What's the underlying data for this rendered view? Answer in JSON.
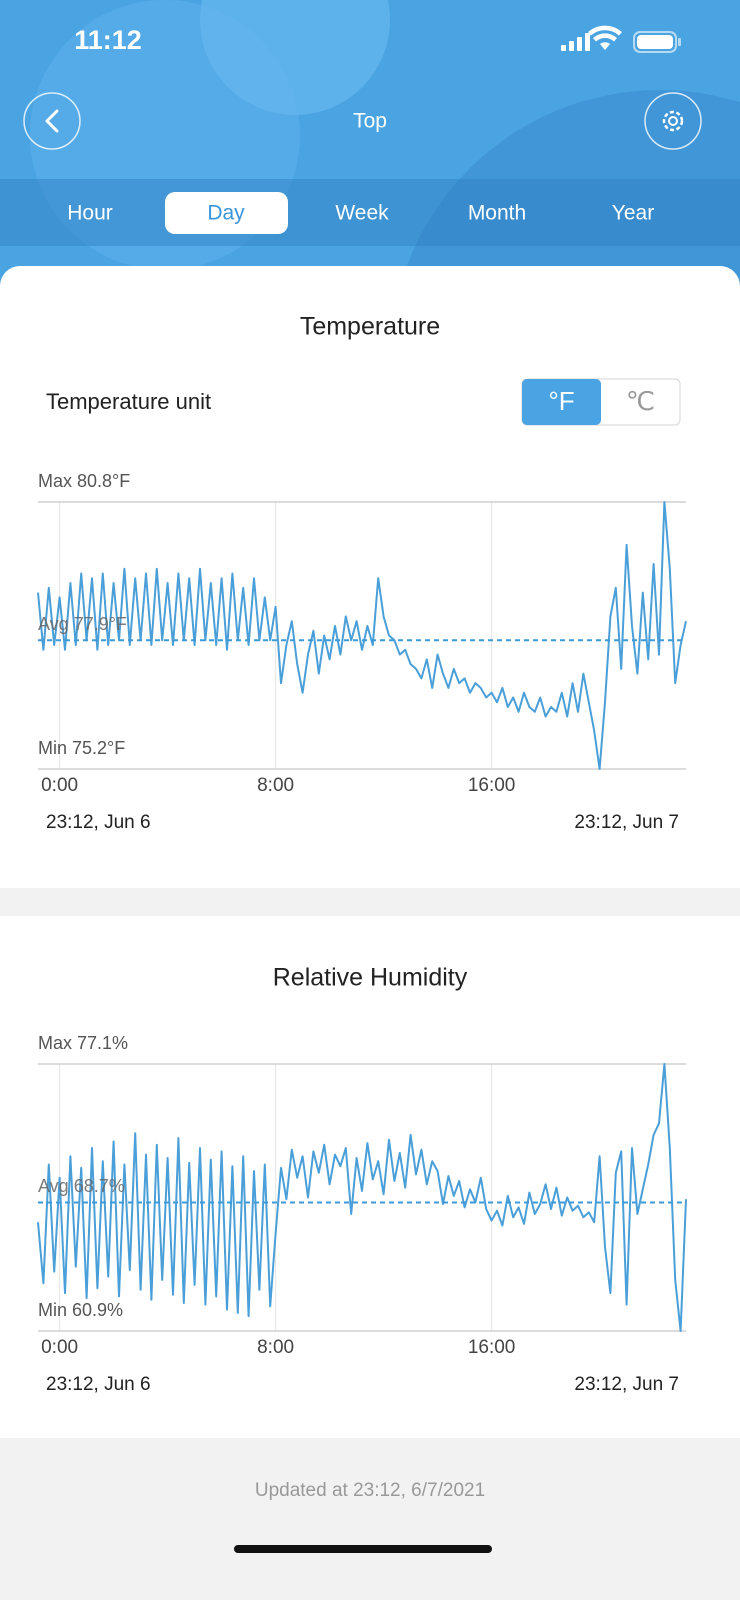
{
  "status_bar": {
    "time": "11:12"
  },
  "header": {
    "title": "Top"
  },
  "tabs": {
    "items": [
      "Hour",
      "Day",
      "Week",
      "Month",
      "Year"
    ],
    "selected": 1
  },
  "temperature_unit": {
    "label": "Temperature unit",
    "options": [
      "°F",
      "℃"
    ],
    "selected": 0
  },
  "chart_data": [
    {
      "type": "line",
      "title": "Temperature",
      "color": "#4a9fd8",
      "grid": true,
      "x": [
        -0.8,
        -0.6,
        -0.4,
        -0.2,
        0,
        0.2,
        0.4,
        0.6,
        0.8,
        1,
        1.2,
        1.4,
        1.6,
        1.8,
        2,
        2.2,
        2.4,
        2.6,
        2.8,
        3,
        3.2,
        3.4,
        3.6,
        3.8,
        4,
        4.2,
        4.4,
        4.6,
        4.8,
        5,
        5.2,
        5.4,
        5.6,
        5.8,
        6,
        6.2,
        6.4,
        6.6,
        6.8,
        7,
        7.2,
        7.4,
        7.6,
        7.8,
        8,
        8.2,
        8.4,
        8.6,
        8.8,
        9,
        9.2,
        9.4,
        9.6,
        9.8,
        10,
        10.2,
        10.4,
        10.6,
        10.8,
        11,
        11.2,
        11.4,
        11.6,
        11.8,
        12,
        12.2,
        12.4,
        12.6,
        12.8,
        13,
        13.2,
        13.4,
        13.6,
        13.8,
        14,
        14.2,
        14.4,
        14.6,
        14.8,
        15,
        15.2,
        15.4,
        15.6,
        15.8,
        16,
        16.2,
        16.4,
        16.6,
        16.8,
        17,
        17.2,
        17.4,
        17.6,
        17.8,
        18,
        18.2,
        18.4,
        18.6,
        18.8,
        19,
        19.2,
        19.4,
        19.6,
        19.8,
        20,
        20.2,
        20.4,
        20.6,
        20.8,
        21,
        21.2,
        21.4,
        21.6,
        21.8,
        22,
        22.2,
        22.4,
        22.6,
        22.8,
        23,
        23.2
      ],
      "series": [
        {
          "color": "#4a9fd8",
          "values": [
            78.9,
            77.7,
            79.0,
            77.8,
            78.8,
            77.7,
            79.1,
            77.8,
            79.3,
            77.9,
            79.2,
            77.7,
            79.3,
            77.8,
            79.1,
            77.9,
            79.4,
            77.8,
            79.2,
            77.9,
            79.3,
            77.8,
            79.4,
            77.9,
            79.1,
            77.8,
            79.3,
            77.9,
            79.2,
            77.8,
            79.4,
            77.9,
            79.1,
            77.8,
            79.2,
            77.7,
            79.3,
            77.9,
            79.0,
            77.8,
            79.2,
            77.9,
            78.8,
            77.9,
            78.6,
            77.0,
            77.8,
            78.3,
            77.4,
            76.8,
            77.6,
            78.1,
            77.2,
            78.0,
            77.5,
            78.2,
            77.6,
            78.4,
            77.9,
            78.3,
            77.7,
            78.2,
            77.8,
            79.2,
            78.4,
            78.0,
            77.9,
            77.6,
            77.7,
            77.4,
            77.3,
            77.1,
            77.5,
            76.9,
            77.6,
            77.2,
            76.9,
            77.3,
            77.0,
            77.1,
            76.8,
            77.0,
            76.9,
            76.7,
            76.8,
            76.6,
            76.9,
            76.5,
            76.7,
            76.4,
            76.8,
            76.5,
            76.4,
            76.7,
            76.3,
            76.5,
            76.4,
            76.8,
            76.3,
            77.0,
            76.4,
            77.2,
            76.6,
            76.0,
            75.2,
            76.6,
            78.4,
            79.0,
            77.3,
            79.9,
            78.2,
            77.2,
            78.9,
            77.5,
            79.5,
            77.6,
            80.8,
            79.4,
            77.0,
            77.8,
            78.3
          ]
        }
      ],
      "xlim": [
        -0.8,
        23.2
      ],
      "xticks": [
        {
          "value": 0,
          "label": "0:00"
        },
        {
          "value": 8,
          "label": "8:00"
        },
        {
          "value": 16,
          "label": "16:00"
        }
      ],
      "ylim": [
        75.2,
        80.8
      ],
      "yticks": [
        {
          "value": 80.8,
          "label": "Max 80.8°F"
        },
        {
          "value": 75.2,
          "label": "Min 75.2°F"
        }
      ],
      "average": {
        "value": 77.9,
        "label": "Avg 77.9°F"
      },
      "range_labels": [
        "23:12,  Jun 6",
        "23:12,  Jun 7"
      ]
    },
    {
      "type": "line",
      "title": "Relative Humidity",
      "color": "#4a9fd8",
      "grid": true,
      "x": [
        -0.8,
        -0.6,
        -0.4,
        -0.2,
        0,
        0.2,
        0.4,
        0.6,
        0.8,
        1,
        1.2,
        1.4,
        1.6,
        1.8,
        2,
        2.2,
        2.4,
        2.6,
        2.8,
        3,
        3.2,
        3.4,
        3.6,
        3.8,
        4,
        4.2,
        4.4,
        4.6,
        4.8,
        5,
        5.2,
        5.4,
        5.6,
        5.8,
        6,
        6.2,
        6.4,
        6.6,
        6.8,
        7,
        7.2,
        7.4,
        7.6,
        7.8,
        8,
        8.2,
        8.4,
        8.6,
        8.8,
        9,
        9.2,
        9.4,
        9.6,
        9.8,
        10,
        10.2,
        10.4,
        10.6,
        10.8,
        11,
        11.2,
        11.4,
        11.6,
        11.8,
        12,
        12.2,
        12.4,
        12.6,
        12.8,
        13,
        13.2,
        13.4,
        13.6,
        13.8,
        14,
        14.2,
        14.4,
        14.6,
        14.8,
        15,
        15.2,
        15.4,
        15.6,
        15.8,
        16,
        16.2,
        16.4,
        16.6,
        16.8,
        17,
        17.2,
        17.4,
        17.6,
        17.8,
        18,
        18.2,
        18.4,
        18.6,
        18.8,
        19,
        19.2,
        19.4,
        19.6,
        19.8,
        20,
        20.2,
        20.4,
        20.6,
        20.8,
        21,
        21.2,
        21.4,
        21.6,
        21.8,
        22,
        22.2,
        22.4,
        22.6,
        22.8,
        23,
        23.2
      ],
      "series": [
        {
          "color": "#4a9fd8",
          "values": [
            67.5,
            63.8,
            71.0,
            64.5,
            70.2,
            63.2,
            71.5,
            64.8,
            70.8,
            62.9,
            72.0,
            63.5,
            71.2,
            64.2,
            72.4,
            63.0,
            71.0,
            64.6,
            72.9,
            63.4,
            71.6,
            62.8,
            72.2,
            64.0,
            71.4,
            63.1,
            72.6,
            62.6,
            71.1,
            63.7,
            72.0,
            62.5,
            71.3,
            63.0,
            71.8,
            62.2,
            70.9,
            62.0,
            71.5,
            61.8,
            70.6,
            63.4,
            71.0,
            62.4,
            66.8,
            70.8,
            68.9,
            71.9,
            70.2,
            71.5,
            69.0,
            71.8,
            70.5,
            72.2,
            69.8,
            71.6,
            70.9,
            72.0,
            68.0,
            71.4,
            69.4,
            72.3,
            70.1,
            71.2,
            69.2,
            72.5,
            70.0,
            71.7,
            69.6,
            72.8,
            70.4,
            71.9,
            69.8,
            71.2,
            70.6,
            68.6,
            70.3,
            69.1,
            70.0,
            68.4,
            69.5,
            68.7,
            70.2,
            68.3,
            67.6,
            68.2,
            67.3,
            69.1,
            67.8,
            68.4,
            67.4,
            69.3,
            68.0,
            68.6,
            69.8,
            68.3,
            69.6,
            67.9,
            69.0,
            68.2,
            68.5,
            67.8,
            68.1,
            67.5,
            71.5,
            66.0,
            63.2,
            70.5,
            71.8,
            62.5,
            72.0,
            68.0,
            69.5,
            71.0,
            72.8,
            73.5,
            77.1,
            72.0,
            64.0,
            60.9,
            68.9
          ]
        }
      ],
      "xlim": [
        -0.8,
        23.2
      ],
      "xticks": [
        {
          "value": 0,
          "label": "0:00"
        },
        {
          "value": 8,
          "label": "8:00"
        },
        {
          "value": 16,
          "label": "16:00"
        }
      ],
      "ylim": [
        60.9,
        77.1
      ],
      "yticks": [
        {
          "value": 77.1,
          "label": "Max 77.1%"
        },
        {
          "value": 60.9,
          "label": "Min 60.9%"
        }
      ],
      "average": {
        "value": 68.7,
        "label": "Avg 68.7%"
      },
      "range_labels": [
        "23:12,  Jun 6",
        "23:12,  Jun 7"
      ]
    }
  ],
  "footer": {
    "updated": "Updated at 23:12,  6/7/2021"
  }
}
